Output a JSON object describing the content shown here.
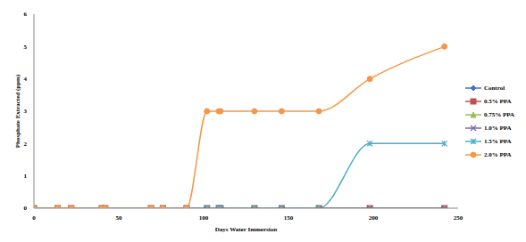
{
  "chart_data": {
    "type": "line",
    "x_label": "Days Water Immersion",
    "y_label": "Phosphate Extracted (ppm)",
    "x": [
      0,
      14,
      22,
      40,
      42,
      69,
      76,
      90,
      102,
      109,
      110,
      130,
      146,
      168,
      198,
      242
    ],
    "series": [
      {
        "name": "Control",
        "color": "#4472c4",
        "marker": "diamond",
        "values": [
          0,
          0,
          0,
          0,
          0,
          0,
          0,
          0,
          0,
          0,
          0,
          0,
          0,
          0,
          0,
          0
        ]
      },
      {
        "name": "0.5% PPA",
        "color": "#c0504d",
        "marker": "square",
        "values": [
          0,
          0,
          0,
          0,
          0,
          0,
          0,
          0,
          0,
          0,
          0,
          0,
          0,
          0,
          0,
          0
        ]
      },
      {
        "name": "0.75% PPA",
        "color": "#9bbb59",
        "marker": "triangle",
        "values": [
          0,
          0,
          0,
          0,
          0,
          0,
          0,
          0,
          0,
          0,
          0,
          0,
          0,
          0,
          0,
          0
        ]
      },
      {
        "name": "1.0% PPA",
        "color": "#8064a2",
        "marker": "x",
        "values": [
          0,
          0,
          0,
          0,
          0,
          0,
          0,
          0,
          0,
          0,
          0,
          0,
          0,
          0,
          0,
          0
        ]
      },
      {
        "name": "1.5% PPA",
        "color": "#4bacc6",
        "marker": "star",
        "values": [
          0,
          0,
          0,
          0,
          0,
          0,
          0,
          0,
          0,
          0,
          0,
          0,
          0,
          0,
          2,
          2
        ]
      },
      {
        "name": "2.0% PPA",
        "color": "#f79646",
        "marker": "circle",
        "values": [
          0,
          0,
          0,
          0,
          0,
          0,
          0,
          0,
          3,
          3,
          3,
          3,
          3,
          3,
          4,
          5
        ]
      }
    ],
    "xlim": [
      0,
      250
    ],
    "xticks": [
      0,
      50,
      100,
      150,
      200,
      250
    ],
    "ylim": [
      0,
      6
    ],
    "yticks": [
      0,
      1,
      2,
      3,
      4,
      5,
      6
    ],
    "grid": false,
    "legend": "right"
  }
}
